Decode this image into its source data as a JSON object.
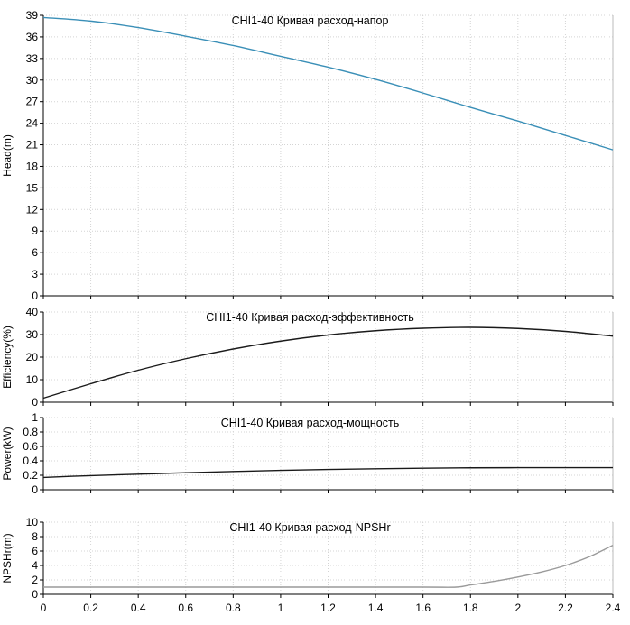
{
  "chart_data": [
    {
      "type": "line",
      "title": "CHI1-40 Кривая расход-напор",
      "ylabel": "Head(m)",
      "xlim": [
        0,
        2.4
      ],
      "ylim": [
        0,
        39
      ],
      "yticks": [
        0,
        3,
        6,
        9,
        12,
        15,
        18,
        21,
        24,
        27,
        30,
        33,
        36,
        39
      ],
      "grid": true,
      "color": "#3a8fb7",
      "series": [
        {
          "x": [
            0,
            0.2,
            0.4,
            0.6,
            0.8,
            1.0,
            1.2,
            1.4,
            1.6,
            1.8,
            2.0,
            2.2,
            2.4
          ],
          "y": [
            38.7,
            38.2,
            37.3,
            36.1,
            34.8,
            33.3,
            31.8,
            30.1,
            28.2,
            26.2,
            24.3,
            22.3,
            20.3
          ]
        }
      ]
    },
    {
      "type": "line",
      "title": "CHI1-40 Кривая расход-эффективность",
      "ylabel": "Efficiency(%)",
      "xlim": [
        0,
        2.4
      ],
      "ylim": [
        0,
        40
      ],
      "yticks": [
        0,
        10,
        20,
        30,
        40
      ],
      "grid": true,
      "color": "#1a1a1a",
      "series": [
        {
          "x": [
            0,
            0.2,
            0.4,
            0.6,
            0.8,
            1.0,
            1.2,
            1.4,
            1.6,
            1.8,
            2.0,
            2.2,
            2.4
          ],
          "y": [
            1.8,
            8.2,
            14.2,
            19.3,
            23.6,
            27.1,
            29.8,
            31.7,
            32.8,
            33.2,
            32.7,
            31.4,
            29.3
          ]
        }
      ]
    },
    {
      "type": "line",
      "title": "CHI1-40 Кривая расход-мощность",
      "ylabel": "Power(kW)",
      "xlim": [
        0,
        2.4
      ],
      "ylim": [
        0,
        1
      ],
      "yticks": [
        0,
        0.2,
        0.4,
        0.6,
        0.8,
        1
      ],
      "grid": true,
      "color": "#1a1a1a",
      "series": [
        {
          "x": [
            0,
            0.2,
            0.4,
            0.6,
            0.8,
            1.0,
            1.2,
            1.4,
            1.6,
            1.8,
            2.0,
            2.2,
            2.4
          ],
          "y": [
            0.17,
            0.195,
            0.215,
            0.235,
            0.252,
            0.268,
            0.28,
            0.29,
            0.298,
            0.303,
            0.305,
            0.306,
            0.305
          ]
        }
      ]
    },
    {
      "type": "line",
      "title": "CHI1-40 Кривая расход-NPSHr",
      "ylabel": "NPSHr(m)",
      "xlim": [
        0,
        2.4
      ],
      "ylim": [
        0,
        10
      ],
      "yticks": [
        0,
        2,
        4,
        6,
        8,
        10
      ],
      "xticks": [
        0,
        0.2,
        0.4,
        0.6,
        0.8,
        1,
        1.2,
        1.4,
        1.6,
        1.8,
        2,
        2.2,
        2.4
      ],
      "grid": true,
      "color": "#9a9a9a",
      "series": [
        {
          "x": [
            0,
            0.4,
            0.8,
            1.2,
            1.6,
            1.74,
            1.8,
            1.9,
            2.0,
            2.1,
            2.2,
            2.3,
            2.4
          ],
          "y": [
            1.0,
            1.0,
            1.0,
            1.0,
            1.0,
            1.0,
            1.3,
            1.8,
            2.4,
            3.1,
            4.0,
            5.2,
            6.8
          ]
        }
      ]
    }
  ]
}
